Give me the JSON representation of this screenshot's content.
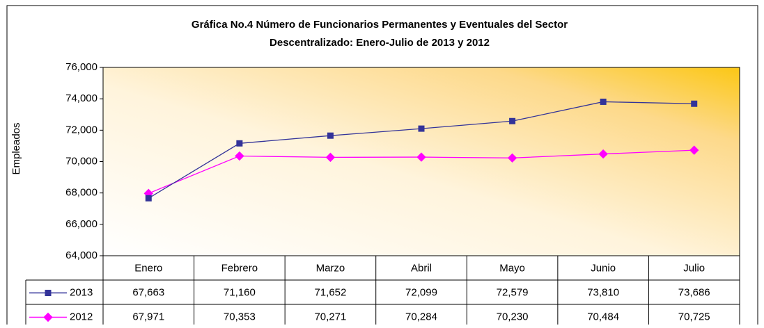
{
  "chart_data": {
    "type": "line",
    "title": [
      "Gráfica No.4 Número de Funcionarios Permanentes y Eventuales del Sector",
      "Descentralizado: Enero-Julio de 2013 y 2012"
    ],
    "y_label": "Empleados",
    "categories": [
      "Enero",
      "Febrero",
      "Marzo",
      "Abril",
      "Mayo",
      "Junio",
      "Julio"
    ],
    "series": [
      {
        "name": "2013",
        "color": "#333399",
        "marker": "square",
        "values": [
          67663,
          71160,
          71652,
          72099,
          72579,
          73810,
          73686
        ],
        "value_labels": [
          "67,663",
          "71,160",
          "71,652",
          "72,099",
          "72,579",
          "73,810",
          "73,686"
        ]
      },
      {
        "name": "2012",
        "color": "#ff00ff",
        "marker": "diamond",
        "values": [
          67971,
          70353,
          70271,
          70284,
          70230,
          70484,
          70725
        ],
        "value_labels": [
          "67,971",
          "70,353",
          "70,271",
          "70,284",
          "70,230",
          "70,484",
          "70,725"
        ]
      }
    ],
    "ylim": [
      64000,
      76000
    ],
    "yticks": [
      {
        "value": 64000,
        "label": "64,000"
      },
      {
        "value": 66000,
        "label": "66,000"
      },
      {
        "value": 68000,
        "label": "68,000"
      },
      {
        "value": 70000,
        "label": "70,000"
      },
      {
        "value": 72000,
        "label": "72,000"
      },
      {
        "value": 74000,
        "label": "74,000"
      },
      {
        "value": 76000,
        "label": "76,000"
      }
    ],
    "data_table": true
  }
}
